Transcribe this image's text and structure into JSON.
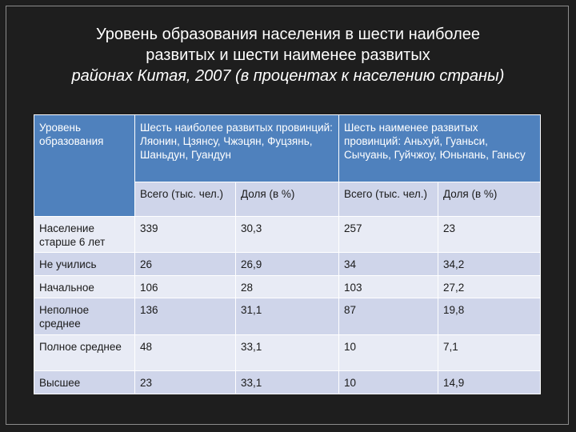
{
  "title": {
    "line1": "Уровень образования населения в шести наиболее",
    "line2": "развитых и шести наименее развитых",
    "line3": "районах Китая, 2007 (в процентах к населению страны)"
  },
  "table": {
    "corner": "Уровень образования",
    "group_headers": [
      "Шесть наиболее развитых провинций: Ляонин, Цзянсу, Чжэцян, Фуцзянь, Шаньдун, Гуандун",
      "Шесть наименее развитых провинций: Аньхуй, Гуаньси, Сычуань, Гуйчжоу, Юньнань, Ганьсу"
    ],
    "sub_headers": [
      "Всего (тыс. чел.)",
      "Доля (в %)",
      "Всего (тыс. чел.)",
      "Доля (в %)"
    ],
    "rows": [
      {
        "label": "Население старше 6 лет",
        "values": [
          "339",
          "30,3",
          "257",
          "23"
        ]
      },
      {
        "label": "Не учились",
        "values": [
          "26",
          "26,9",
          "34",
          "34,2"
        ]
      },
      {
        "label": "Начальное",
        "values": [
          "106",
          "28",
          "103",
          "27,2"
        ]
      },
      {
        "label": "Неполное среднее",
        "values": [
          "136",
          "31,1",
          "87",
          "19,8"
        ]
      },
      {
        "label": "Полное среднее",
        "values": [
          "48",
          "33,1",
          "10",
          "7,1"
        ]
      },
      {
        "label": "Высшее",
        "values": [
          "23",
          "33,1",
          "10",
          "14,9"
        ]
      }
    ]
  }
}
